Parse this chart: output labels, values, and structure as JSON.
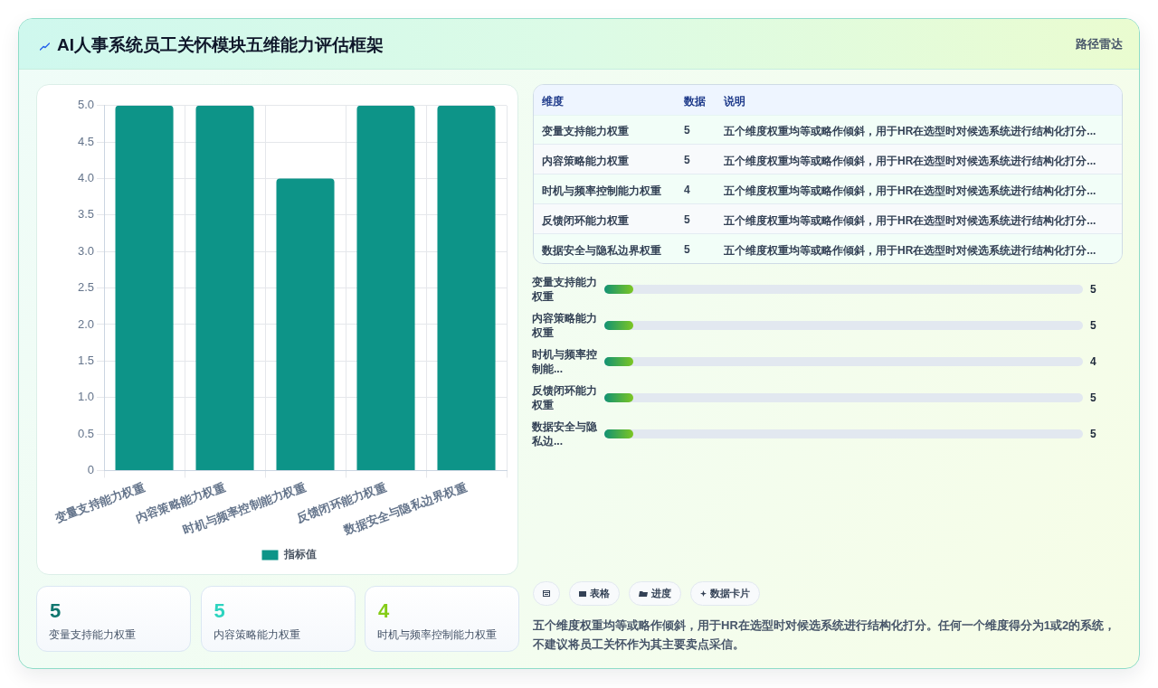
{
  "chart_data": [
    {
      "type": "bar",
      "title": "AI人事系统员工关怀模块五维能力评估框架",
      "categories": [
        "变量支持能力权重",
        "内容策略能力权重",
        "时机与频率控制能力权重",
        "反馈闭环能力权重",
        "数据安全与隐私边界权重"
      ],
      "series": [
        {
          "name": "指标值",
          "color": "#0d9488",
          "values": [
            5,
            5,
            4,
            5,
            5
          ]
        }
      ],
      "ylim": [
        0,
        5
      ],
      "yticks": [
        0,
        0.5,
        {
          "value": 1,
          "label": "1.0"
        },
        1.5,
        {
          "value": 2,
          "label": "2.0"
        },
        2.5,
        {
          "value": 3,
          "label": "3.0"
        },
        3.5,
        {
          "value": 4,
          "label": "4.0"
        },
        4.5,
        {
          "value": 5,
          "label": "5.0"
        }
      ],
      "grid": true,
      "legend": "bottom"
    },
    {
      "type": "other",
      "subtitle": "路径雷达",
      "categories": [
        "变量支持能力权重",
        "内容策略能力权重",
        "时机与频率控制能力权重",
        "反馈闭环能力权重",
        "数据安全与隐私边界权重"
      ],
      "values": [
        5,
        5,
        4,
        5,
        5
      ],
      "data_labels": true,
      "annotations": [
        "维度",
        "数据",
        "说明",
        "五个维度权重均等或略作倾斜，用于HR在选型时对候选系统进行结构化打分..."
      ]
    },
    {
      "type": "other",
      "categories": [
        "变量支持能力权重",
        "内容策略能力权重",
        "时机与频率控制能...",
        "反馈闭环能力权重",
        "数据安全与隐私边..."
      ],
      "values": [
        5,
        5,
        4,
        5,
        5
      ],
      "data_labels": true
    },
    {
      "type": "other",
      "categories": [
        "变量支持能力权重",
        "内容策略能力权重",
        "时机与频率控制能力权重"
      ],
      "values": [
        5,
        5,
        4
      ],
      "data_labels": true
    },
    {
      "type": "other",
      "annotations": [
        "表格",
        "进度",
        "数据卡片",
        "五个维度权重均等或略作倾斜，用于HR在选型时对候选系统进行结构化打分。任何一个维度得分为1或2的系统，不建议将员工关怀作为其主要卖点采信。"
      ]
    }
  ]
}
